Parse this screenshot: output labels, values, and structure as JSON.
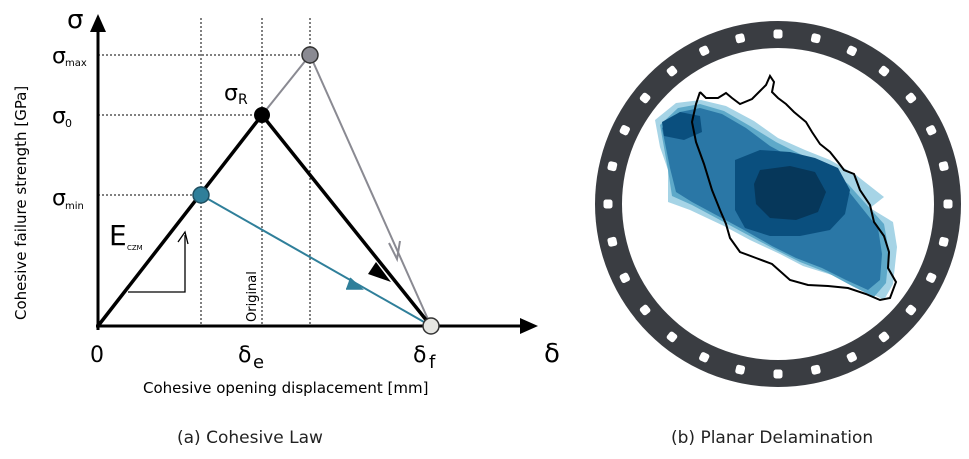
{
  "law": {
    "y_axis_symbol": "σ",
    "x_axis_symbol": "δ",
    "ylabel": "Cohesive failure strength [GPa]",
    "xlabel": "Cohesive opening displacement [mm]",
    "origin_label": "0",
    "sigma_max_label": "σ",
    "sigma_max_sub": "max",
    "sigma_0_label": "σ",
    "sigma_0_sub": "0",
    "sigma_min_label": "σ",
    "sigma_min_sub": "min",
    "sigma_R_label": "σ",
    "sigma_R_sub": "R",
    "delta_e_label": "δ",
    "delta_e_sub": "e",
    "delta_f_label": "δ",
    "delta_f_sub": "f",
    "stiffness_label": "E",
    "stiffness_sub": "CZM",
    "original_label": "Original",
    "colors": {
      "main": "#000000",
      "max_curve": "#8a8a92",
      "min_curve": "#2f7f9a",
      "max_node": "#8a8a92",
      "min_node": "#2f7f9a",
      "end_node": "#e6e6e2"
    }
  },
  "delamination": {
    "ring_color": "#3a3d42",
    "hole_color": "#ffffff",
    "shade_colors": [
      "#a6d4e6",
      "#5ea9c9",
      "#2a77a6",
      "#0a4f7e",
      "#06375a"
    ],
    "outline_color": "#000000"
  },
  "captions": {
    "left": "(a) Cohesive Law",
    "right": "(b) Planar Delamination"
  }
}
